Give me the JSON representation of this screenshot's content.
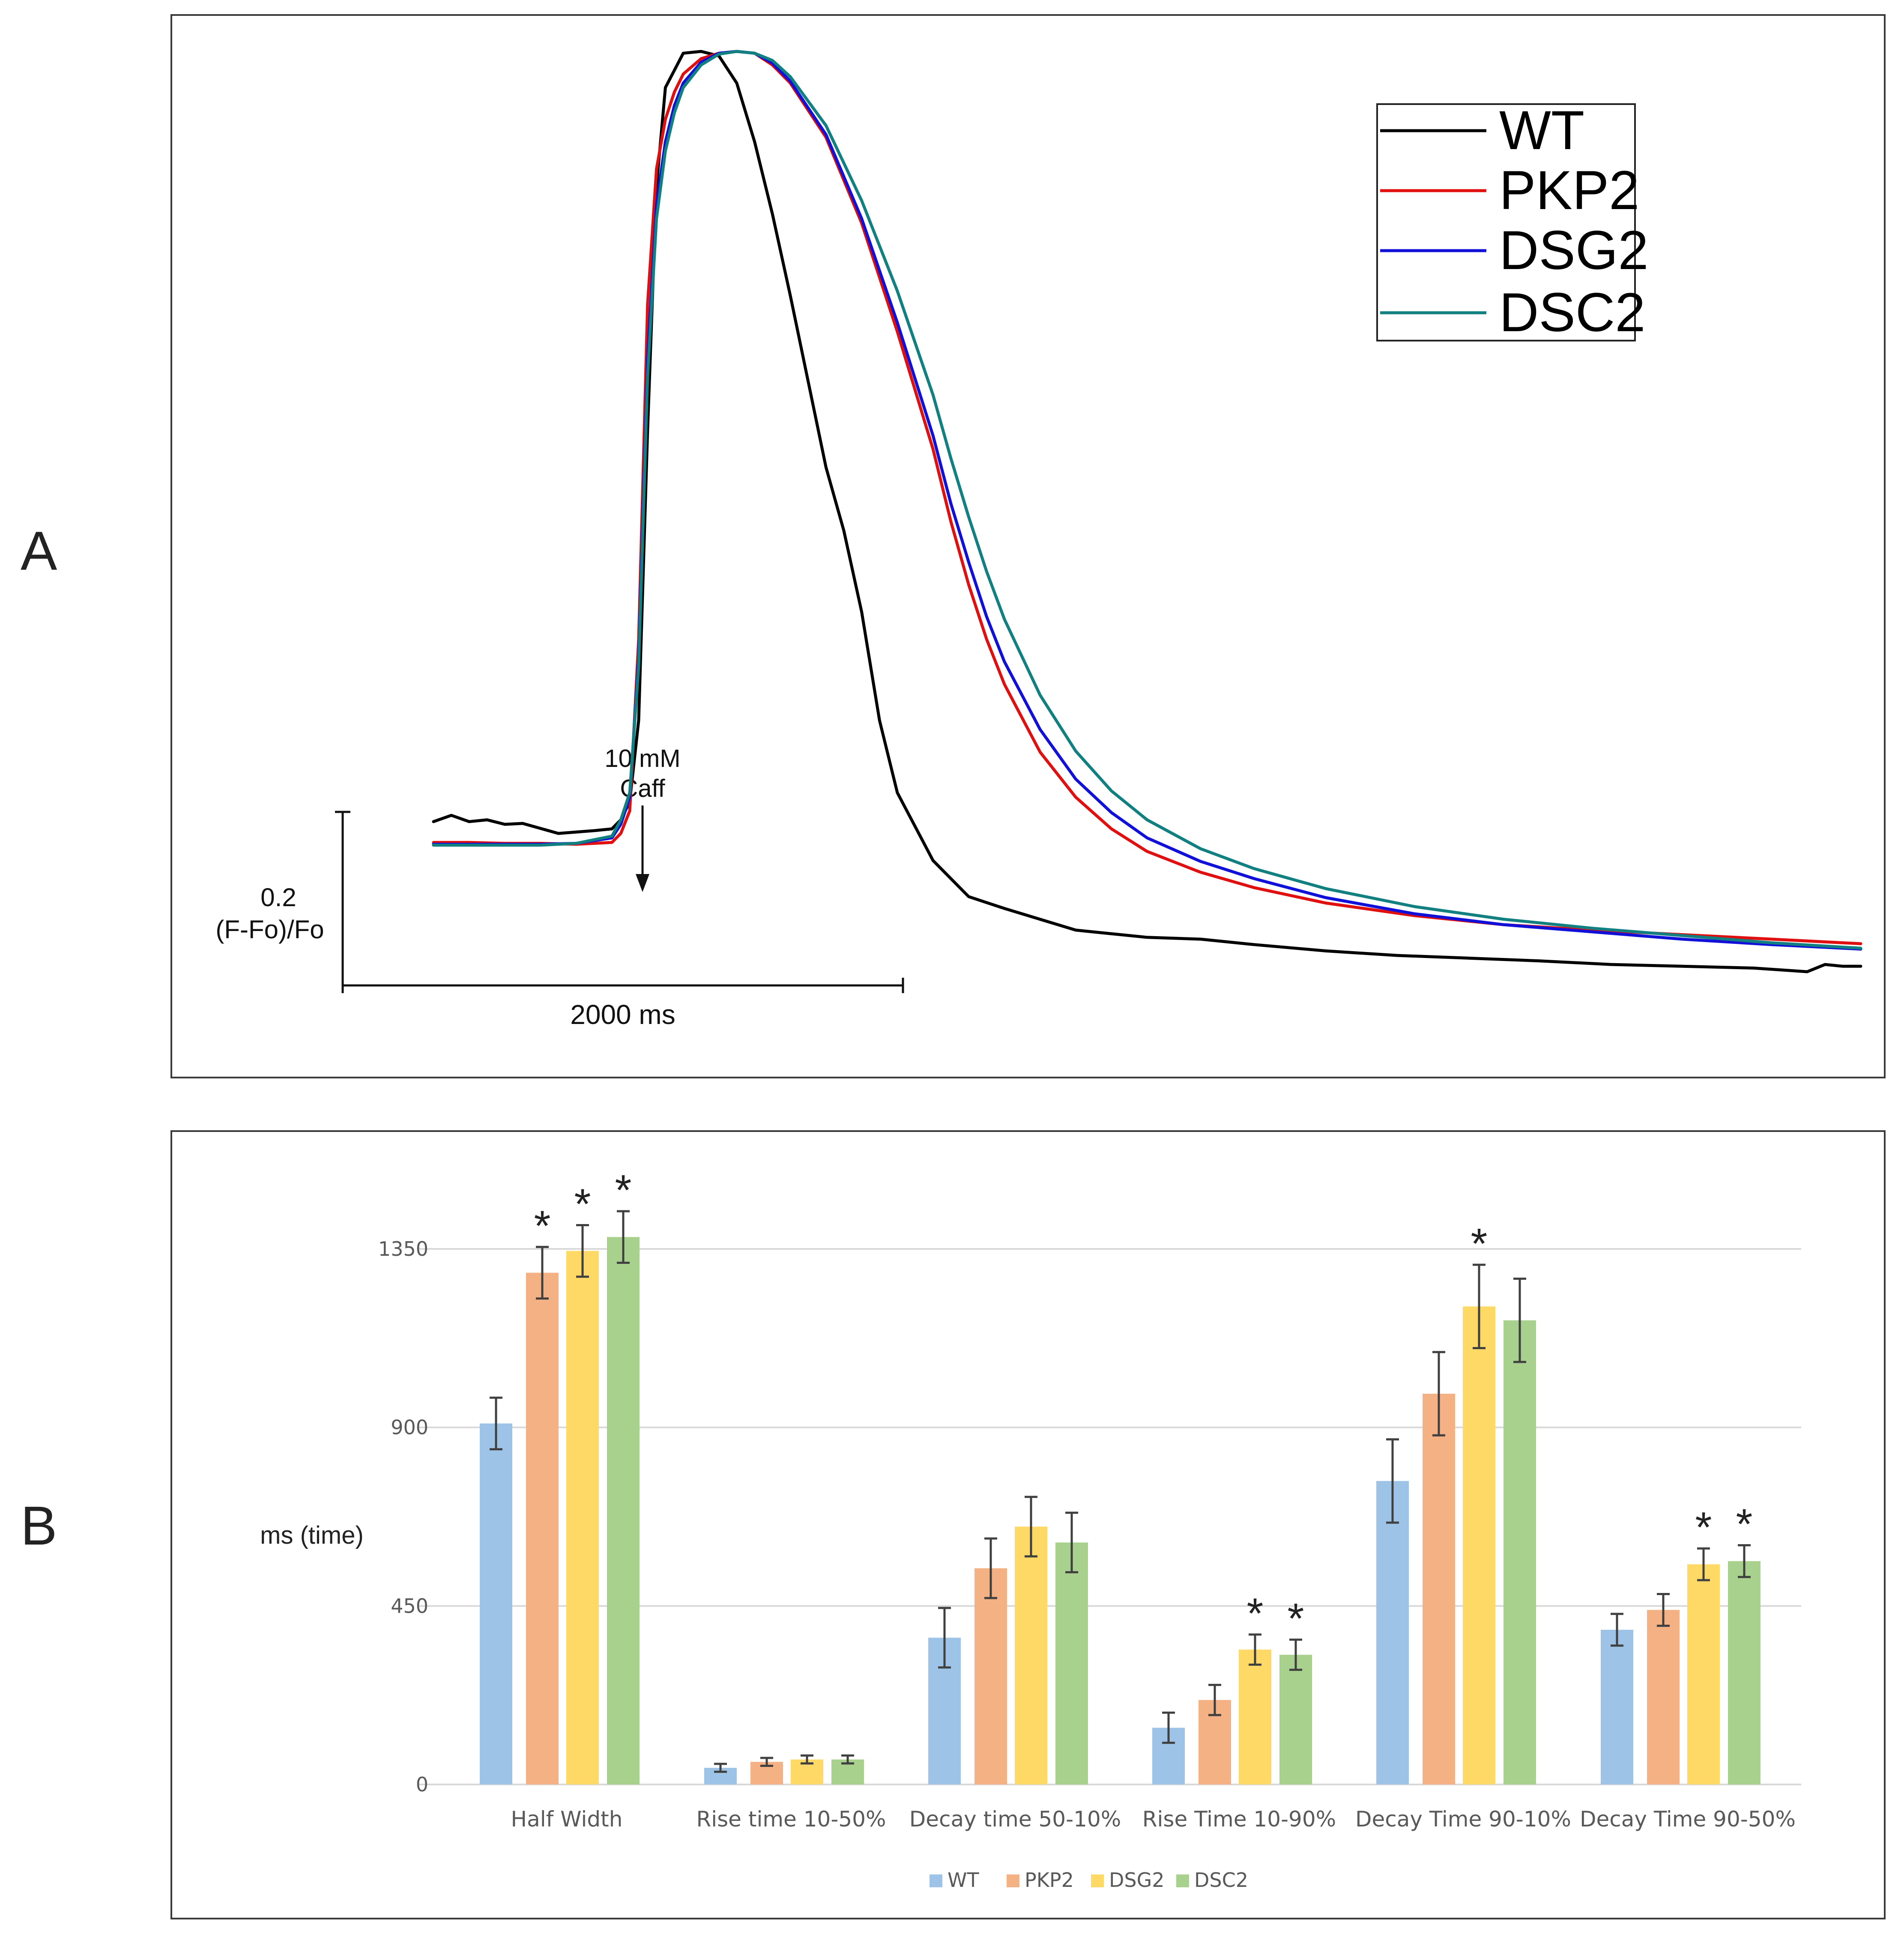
{
  "panels": {
    "a_label": "A",
    "b_label": "B"
  },
  "chart_data": [
    {
      "type": "line",
      "panel": "A",
      "title": "",
      "annotation": [
        "10 mM",
        "Caff"
      ],
      "scale_bar": {
        "y_label": [
          "0.2",
          "(F-Fo)/Fo"
        ],
        "x_label": "2000 ms"
      },
      "x_range_ms": [
        0,
        8000
      ],
      "y_range": [
        0,
        1.0
      ],
      "legend": {
        "position": "top-right",
        "entries": [
          "WT",
          "PKP2",
          "DSG2",
          "DSC2"
        ]
      },
      "series": [
        {
          "name": "WT",
          "color": "#000000",
          "x": [
            0,
            100,
            200,
            300,
            400,
            500,
            700,
            900,
            1000,
            1050,
            1100,
            1150,
            1200,
            1250,
            1300,
            1400,
            1500,
            1600,
            1700,
            1800,
            1900,
            2000,
            2100,
            2200,
            2300,
            2400,
            2500,
            2600,
            2800,
            3000,
            3200,
            3400,
            3600,
            3800,
            4000,
            4300,
            4600,
            5000,
            5400,
            5800,
            6200,
            6600,
            7000,
            7400,
            7700,
            7800,
            7900,
            8000
          ],
          "y": [
            0.148,
            0.155,
            0.148,
            0.15,
            0.145,
            0.146,
            0.135,
            0.138,
            0.14,
            0.15,
            0.17,
            0.26,
            0.58,
            0.85,
            0.96,
            0.998,
            1.0,
            0.995,
            0.965,
            0.9,
            0.82,
            0.73,
            0.635,
            0.54,
            0.47,
            0.38,
            0.26,
            0.18,
            0.105,
            0.065,
            0.052,
            0.04,
            0.028,
            0.024,
            0.02,
            0.018,
            0.012,
            0.005,
            0.0,
            -0.003,
            -0.006,
            -0.01,
            -0.012,
            -0.014,
            -0.018,
            -0.01,
            -0.012,
            -0.012
          ]
        },
        {
          "name": "PKP2",
          "color": "#e01010",
          "x": [
            0,
            200,
            400,
            600,
            800,
            1000,
            1050,
            1100,
            1150,
            1200,
            1250,
            1300,
            1350,
            1400,
            1500,
            1600,
            1700,
            1800,
            1900,
            2000,
            2200,
            2400,
            2600,
            2800,
            2900,
            3000,
            3100,
            3200,
            3400,
            3600,
            3800,
            4000,
            4300,
            4600,
            5000,
            5500,
            6000,
            6500,
            7000,
            7500,
            8000
          ],
          "y": [
            0.125,
            0.125,
            0.124,
            0.124,
            0.123,
            0.125,
            0.135,
            0.16,
            0.35,
            0.72,
            0.87,
            0.925,
            0.955,
            0.975,
            0.992,
            0.998,
            1.0,
            0.998,
            0.985,
            0.965,
            0.905,
            0.81,
            0.69,
            0.56,
            0.48,
            0.41,
            0.35,
            0.3,
            0.225,
            0.175,
            0.14,
            0.115,
            0.092,
            0.075,
            0.058,
            0.044,
            0.034,
            0.028,
            0.023,
            0.018,
            0.013
          ]
        },
        {
          "name": "DSG2",
          "color": "#1010d8",
          "x": [
            0,
            200,
            400,
            600,
            800,
            1000,
            1050,
            1100,
            1150,
            1200,
            1250,
            1300,
            1350,
            1400,
            1500,
            1600,
            1700,
            1800,
            1900,
            2000,
            2200,
            2400,
            2600,
            2800,
            2900,
            3000,
            3100,
            3200,
            3400,
            3600,
            3800,
            4000,
            4300,
            4600,
            5000,
            5500,
            6000,
            6500,
            7000,
            7500,
            8000
          ],
          "y": [
            0.123,
            0.123,
            0.123,
            0.123,
            0.124,
            0.13,
            0.145,
            0.175,
            0.33,
            0.66,
            0.83,
            0.9,
            0.94,
            0.965,
            0.988,
            0.998,
            1.0,
            0.998,
            0.987,
            0.967,
            0.908,
            0.815,
            0.7,
            0.575,
            0.5,
            0.435,
            0.375,
            0.325,
            0.25,
            0.195,
            0.158,
            0.13,
            0.104,
            0.085,
            0.064,
            0.046,
            0.034,
            0.026,
            0.018,
            0.012,
            0.007
          ]
        },
        {
          "name": "DSC2",
          "color": "#128080",
          "x": [
            0,
            200,
            400,
            600,
            800,
            1000,
            1050,
            1100,
            1150,
            1200,
            1250,
            1300,
            1350,
            1400,
            1500,
            1600,
            1700,
            1800,
            1900,
            2000,
            2200,
            2400,
            2600,
            2800,
            2900,
            3000,
            3100,
            3200,
            3400,
            3600,
            3800,
            4000,
            4300,
            4600,
            5000,
            5500,
            6000,
            6500,
            7000,
            7500,
            8000
          ],
          "y": [
            0.122,
            0.122,
            0.122,
            0.122,
            0.124,
            0.132,
            0.15,
            0.18,
            0.32,
            0.64,
            0.815,
            0.89,
            0.932,
            0.96,
            0.985,
            0.997,
            1.0,
            0.998,
            0.99,
            0.972,
            0.918,
            0.835,
            0.735,
            0.62,
            0.55,
            0.485,
            0.425,
            0.372,
            0.288,
            0.226,
            0.182,
            0.15,
            0.118,
            0.096,
            0.074,
            0.054,
            0.04,
            0.03,
            0.022,
            0.014,
            0.008
          ]
        }
      ]
    },
    {
      "type": "bar",
      "panel": "B",
      "title": "",
      "xlabel": "",
      "ylabel": "ms (time)",
      "ylim": [
        0,
        1350
      ],
      "yticks": [
        "0",
        "450",
        "900",
        "1350"
      ],
      "grid": true,
      "legend": {
        "position": "bottom-center",
        "entries": [
          "WT",
          "PKP2",
          "DSG2",
          "DSC2"
        ]
      },
      "categories": [
        "Half Width",
        "Rise time 10-50%",
        "Decay time 50-10%",
        "Rise Time 10-90%",
        "Decay Time 90-10%",
        "Decay Time 90-50%"
      ],
      "series": [
        {
          "name": "WT",
          "color": "#9dc3e6",
          "values": [
            910,
            42,
            370,
            143,
            765,
            390
          ],
          "errors": [
            65,
            10,
            75,
            38,
            105,
            40
          ],
          "significant": [
            false,
            false,
            false,
            false,
            false,
            false
          ]
        },
        {
          "name": "PKP2",
          "color": "#f4b183",
          "values": [
            1290,
            57,
            545,
            213,
            985,
            440
          ],
          "errors": [
            65,
            10,
            75,
            38,
            105,
            40
          ],
          "significant": [
            true,
            false,
            false,
            false,
            false,
            false
          ]
        },
        {
          "name": "DSG2",
          "color": "#ffd966",
          "values": [
            1345,
            63,
            650,
            340,
            1205,
            555
          ],
          "errors": [
            65,
            10,
            75,
            38,
            105,
            40
          ],
          "significant": [
            true,
            false,
            false,
            true,
            true,
            true
          ]
        },
        {
          "name": "DSC2",
          "color": "#a9d18e",
          "values": [
            1380,
            63,
            610,
            327,
            1170,
            563
          ],
          "errors": [
            65,
            10,
            75,
            38,
            105,
            40
          ],
          "significant": [
            true,
            false,
            false,
            true,
            false,
            true
          ]
        }
      ],
      "significance_marker": "*"
    }
  ]
}
